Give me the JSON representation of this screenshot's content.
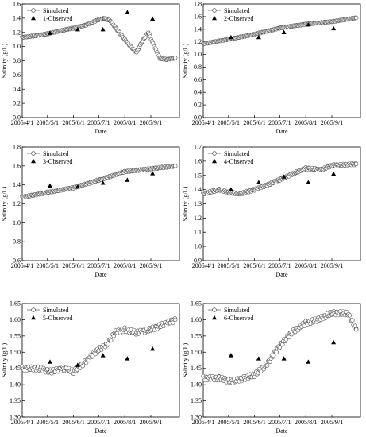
{
  "chart_data": [
    {
      "type": "scatter",
      "xlabel": "Date",
      "ylabel": "Salinity (g/L)",
      "ylim": [
        0.0,
        1.6
      ],
      "yticks": [
        0.0,
        0.2,
        0.4,
        0.6,
        0.8,
        1.0,
        1.2,
        1.4,
        1.6
      ],
      "x_tick_labels": [
        "2005/4/1",
        "2005/5/1",
        "2005/6/1",
        "2005/7/1",
        "2005/8/1",
        "2005/9/1"
      ],
      "legend": {
        "position": "top-left",
        "entries": [
          "Simulated",
          "1-Observed"
        ]
      },
      "series": [
        {
          "name": "Simulated",
          "marker": "open-circle",
          "x": [
            "2005/4/1",
            "2005/4/15",
            "2005/5/1",
            "2005/5/15",
            "2005/6/1",
            "2005/6/15",
            "2005/7/1",
            "2005/7/8",
            "2005/7/15",
            "2005/7/22",
            "2005/8/1",
            "2005/8/8",
            "2005/8/15",
            "2005/8/22",
            "2005/8/29",
            "2005/9/5",
            "2005/9/12",
            "2005/9/20",
            "2005/9/30"
          ],
          "values": [
            1.13,
            1.15,
            1.18,
            1.22,
            1.26,
            1.3,
            1.38,
            1.4,
            1.36,
            1.25,
            1.1,
            1.0,
            0.92,
            1.08,
            1.2,
            1.0,
            0.83,
            0.82,
            0.84
          ]
        },
        {
          "name": "1-Observed",
          "marker": "filled-triangle",
          "x": [
            "2005/5/4",
            "2005/6/6",
            "2005/7/6",
            "2005/8/4",
            "2005/9/3"
          ],
          "values": [
            1.19,
            1.24,
            1.24,
            1.48,
            1.39
          ]
        }
      ]
    },
    {
      "type": "scatter",
      "xlabel": "Date",
      "ylabel": "Salinity (g/L)",
      "ylim": [
        0.0,
        1.8
      ],
      "yticks": [
        0.0,
        0.2,
        0.4,
        0.6,
        0.8,
        1.0,
        1.2,
        1.4,
        1.6,
        1.8
      ],
      "x_tick_labels": [
        "2005/4/1",
        "2005/5/1",
        "2005/6/1",
        "2005/7/1",
        "2005/8/1",
        "2005/9/1"
      ],
      "legend": {
        "position": "top-left",
        "entries": [
          "Simulated",
          "2-Observed"
        ]
      },
      "series": [
        {
          "name": "Simulated",
          "marker": "open-circle",
          "x": [
            "2005/4/1",
            "2005/5/1",
            "2005/6/1",
            "2005/7/1",
            "2005/8/1",
            "2005/9/1",
            "2005/9/30"
          ],
          "values": [
            1.17,
            1.24,
            1.32,
            1.42,
            1.48,
            1.52,
            1.58
          ]
        },
        {
          "name": "2-Observed",
          "marker": "filled-triangle",
          "x": [
            "2005/5/4",
            "2005/6/6",
            "2005/7/6",
            "2005/8/4",
            "2005/9/3"
          ],
          "values": [
            1.27,
            1.27,
            1.35,
            1.47,
            1.41
          ]
        }
      ]
    },
    {
      "type": "scatter",
      "xlabel": "Date",
      "ylabel": "Salinity (g/L)",
      "ylim": [
        0.6,
        1.8
      ],
      "yticks": [
        0.6,
        0.8,
        1.0,
        1.2,
        1.4,
        1.6,
        1.8
      ],
      "x_tick_labels": [
        "2005/4/1",
        "2005/5/1",
        "2005/6/1",
        "2005/7/1",
        "2005/8/1",
        "2005/9/1"
      ],
      "legend": {
        "position": "top-left",
        "entries": [
          "Simulated",
          "3-Observed"
        ]
      },
      "series": [
        {
          "name": "Simulated",
          "marker": "open-circle",
          "x": [
            "2005/4/1",
            "2005/5/1",
            "2005/6/1",
            "2005/7/1",
            "2005/8/1",
            "2005/9/1",
            "2005/9/30"
          ],
          "values": [
            1.27,
            1.32,
            1.37,
            1.45,
            1.54,
            1.57,
            1.6
          ]
        },
        {
          "name": "3-Observed",
          "marker": "filled-triangle",
          "x": [
            "2005/5/4",
            "2005/6/6",
            "2005/7/6",
            "2005/8/4",
            "2005/9/3"
          ],
          "values": [
            1.39,
            1.38,
            1.42,
            1.45,
            1.52
          ]
        }
      ]
    },
    {
      "type": "scatter",
      "xlabel": "Date",
      "ylabel": "Salinity (g/L)",
      "ylim": [
        0.9,
        1.7
      ],
      "yticks": [
        0.9,
        1.0,
        1.1,
        1.2,
        1.3,
        1.4,
        1.5,
        1.6,
        1.7
      ],
      "x_tick_labels": [
        "2005/4/1",
        "2005/5/1",
        "2005/6/1",
        "2005/7/1",
        "2005/8/1",
        "2005/9/1"
      ],
      "legend": {
        "position": "top-left",
        "entries": [
          "Simulated",
          "4-Observed"
        ]
      },
      "series": [
        {
          "name": "Simulated",
          "marker": "open-circle",
          "x": [
            "2005/4/1",
            "2005/4/20",
            "2005/5/1",
            "2005/5/15",
            "2005/6/1",
            "2005/6/15",
            "2005/7/1",
            "2005/7/20",
            "2005/8/1",
            "2005/8/20",
            "2005/9/1",
            "2005/9/30"
          ],
          "values": [
            1.37,
            1.4,
            1.38,
            1.37,
            1.4,
            1.43,
            1.47,
            1.52,
            1.55,
            1.54,
            1.57,
            1.58
          ]
        },
        {
          "name": "4-Observed",
          "marker": "filled-triangle",
          "x": [
            "2005/5/4",
            "2005/6/6",
            "2005/7/6",
            "2005/8/4",
            "2005/9/3"
          ],
          "values": [
            1.4,
            1.45,
            1.49,
            1.45,
            1.51
          ]
        }
      ]
    },
    {
      "type": "scatter",
      "xlabel": "Date",
      "ylabel": "Salinity (g/L)",
      "ylim": [
        1.3,
        1.65
      ],
      "yticks": [
        1.3,
        1.35,
        1.4,
        1.45,
        1.5,
        1.55,
        1.6,
        1.65
      ],
      "x_tick_labels": [
        "2005/4/1",
        "2005/5/1",
        "2005/6/1",
        "2005/7/1",
        "2005/8/1",
        "2005/9/1"
      ],
      "legend": {
        "position": "top-left",
        "entries": [
          "Simulated",
          "5-Observed"
        ]
      },
      "series": [
        {
          "name": "Simulated",
          "marker": "open-circle",
          "x": [
            "2005/4/1",
            "2005/4/20",
            "2005/5/5",
            "2005/5/20",
            "2005/6/1",
            "2005/6/15",
            "2005/7/1",
            "2005/7/10",
            "2005/7/20",
            "2005/8/1",
            "2005/8/15",
            "2005/9/1",
            "2005/9/30"
          ],
          "values": [
            1.45,
            1.45,
            1.44,
            1.45,
            1.44,
            1.47,
            1.51,
            1.52,
            1.56,
            1.57,
            1.56,
            1.57,
            1.6
          ]
        },
        {
          "name": "5-Observed",
          "marker": "filled-triangle",
          "x": [
            "2005/5/4",
            "2005/6/6",
            "2005/7/6",
            "2005/8/4",
            "2005/9/3"
          ],
          "values": [
            1.47,
            1.46,
            1.49,
            1.48,
            1.51
          ]
        }
      ]
    },
    {
      "type": "scatter",
      "xlabel": "Date",
      "ylabel": "Salinity (g/L)",
      "ylim": [
        1.3,
        1.65
      ],
      "yticks": [
        1.3,
        1.35,
        1.4,
        1.45,
        1.5,
        1.55,
        1.6,
        1.65
      ],
      "x_tick_labels": [
        "2005/4/1",
        "2005/5/1",
        "2005/6/1",
        "2005/7/1",
        "2005/8/1",
        "2005/9/1"
      ],
      "legend": {
        "position": "top-left",
        "entries": [
          "Simulated",
          "6-Observed"
        ]
      },
      "series": [
        {
          "name": "Simulated",
          "marker": "open-circle",
          "x": [
            "2005/4/1",
            "2005/4/20",
            "2005/5/5",
            "2005/5/20",
            "2005/6/1",
            "2005/6/15",
            "2005/7/1",
            "2005/7/15",
            "2005/8/1",
            "2005/8/15",
            "2005/9/1",
            "2005/9/20",
            "2005/9/30"
          ],
          "values": [
            1.42,
            1.42,
            1.41,
            1.42,
            1.43,
            1.46,
            1.52,
            1.56,
            1.59,
            1.6,
            1.62,
            1.62,
            1.57
          ]
        },
        {
          "name": "6-Observed",
          "marker": "filled-triangle",
          "x": [
            "2005/5/4",
            "2005/6/6",
            "2005/7/6",
            "2005/8/4",
            "2005/9/3"
          ],
          "values": [
            1.49,
            1.48,
            1.48,
            1.47,
            1.53
          ]
        }
      ]
    }
  ]
}
